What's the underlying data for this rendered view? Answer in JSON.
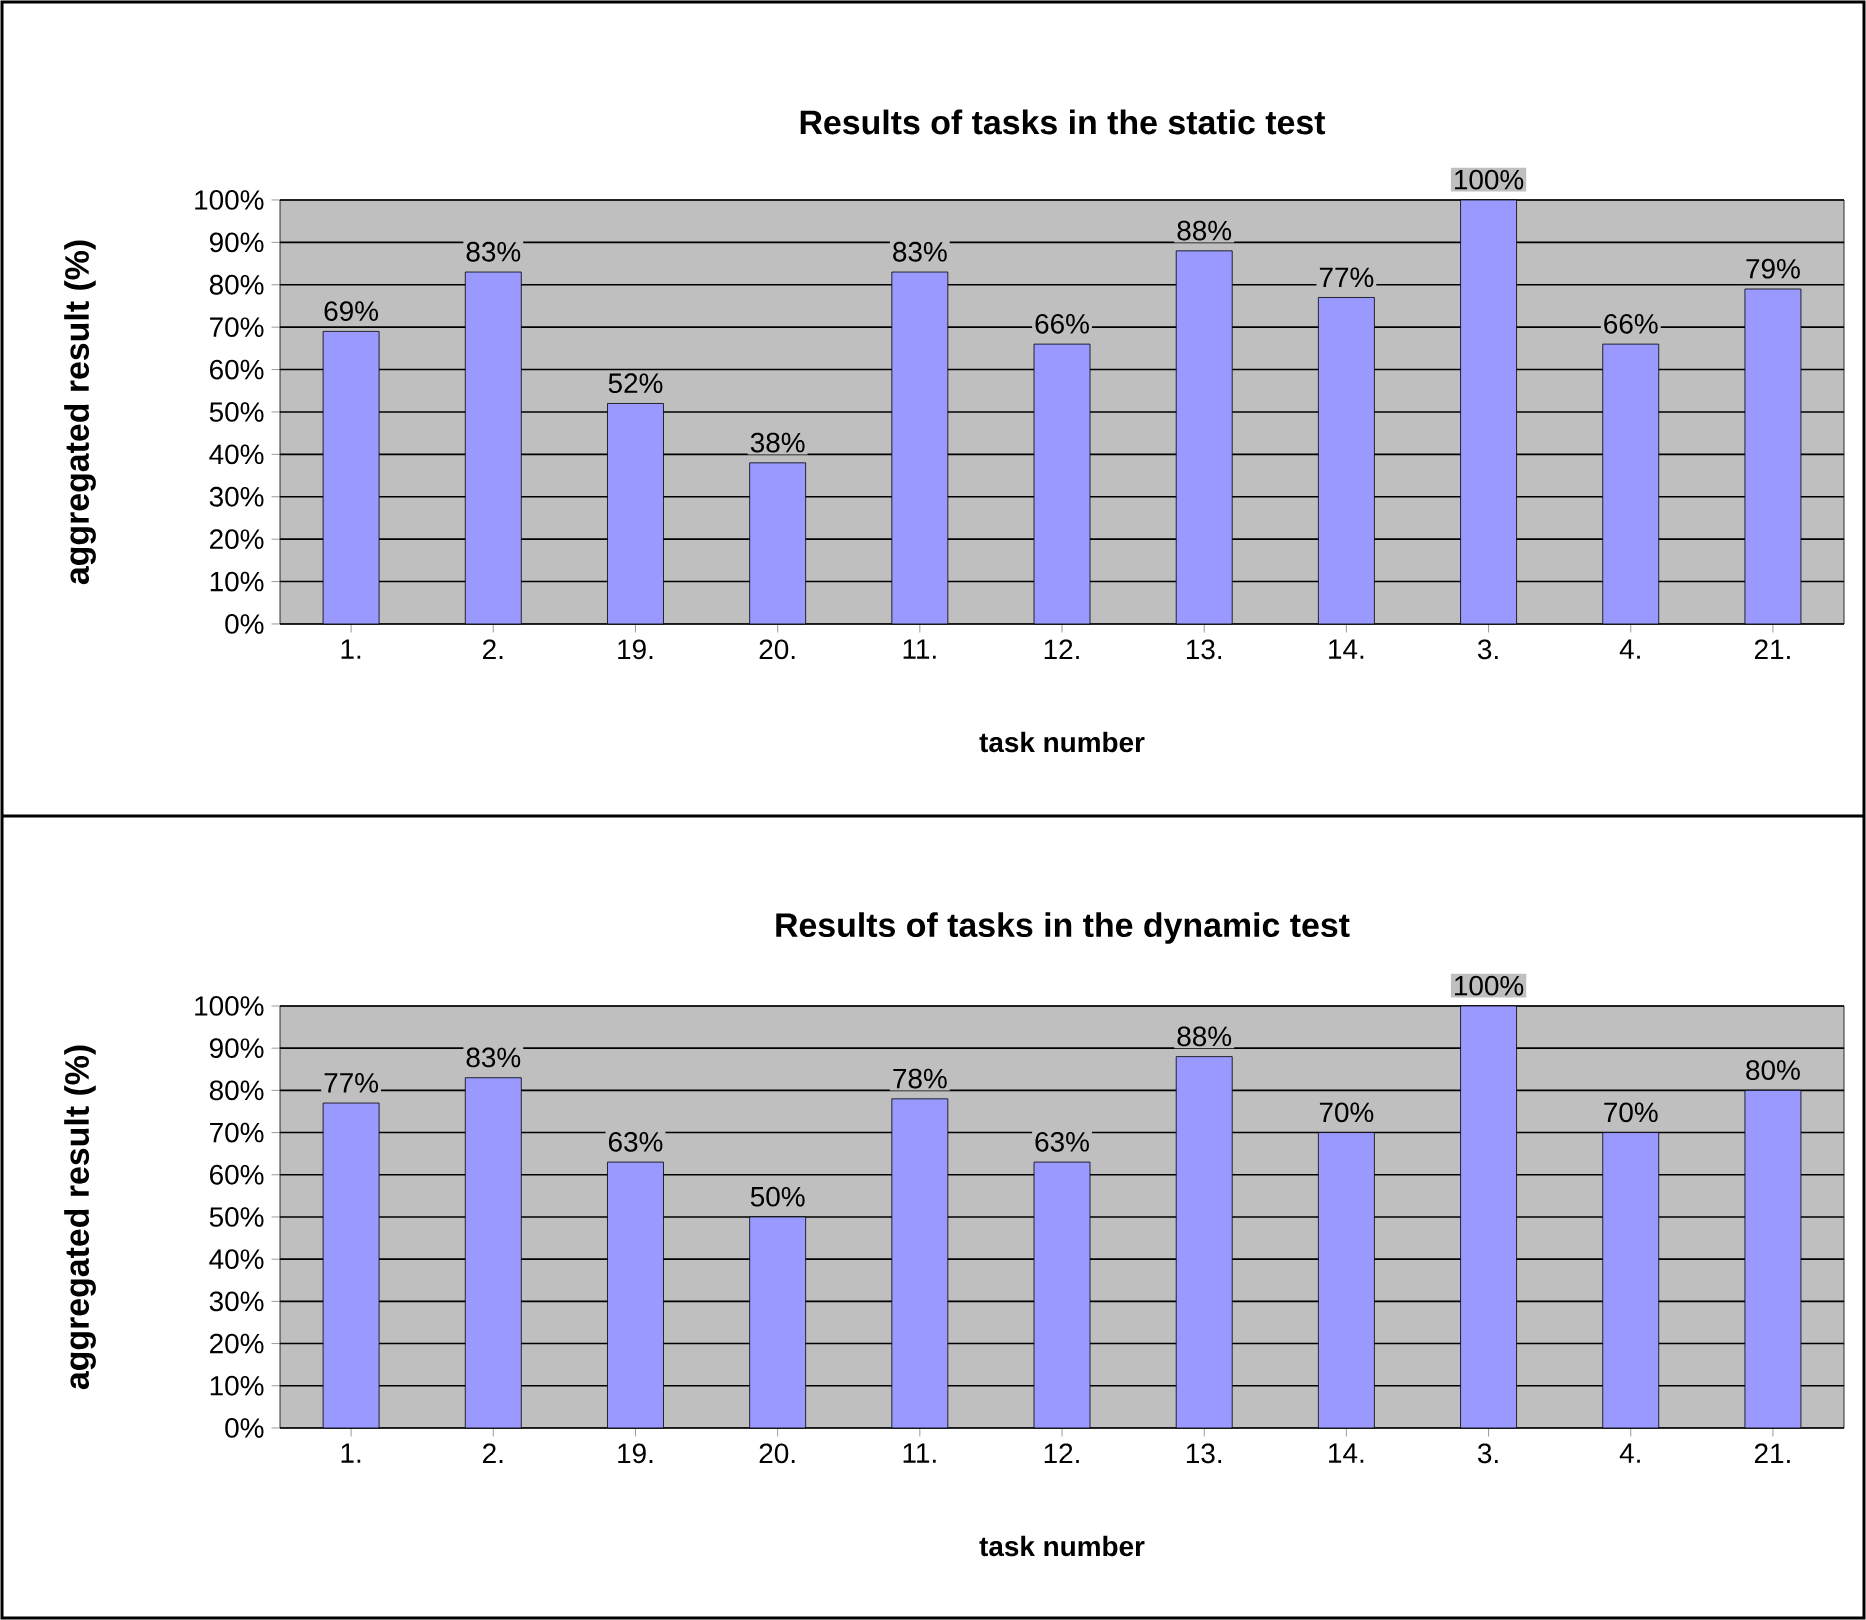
{
  "chart_data": [
    {
      "type": "bar",
      "title": "Results of tasks in the static test",
      "xlabel": "task number",
      "ylabel": "aggregated result (%)",
      "categories": [
        "1.",
        "2.",
        "19.",
        "20.",
        "11.",
        "12.",
        "13.",
        "14.",
        "3.",
        "4.",
        "21."
      ],
      "values": [
        69,
        83,
        52,
        38,
        83,
        66,
        88,
        77,
        100,
        66,
        79
      ],
      "value_labels": [
        "69%",
        "83%",
        "52%",
        "38%",
        "83%",
        "66%",
        "88%",
        "77%",
        "100%",
        "66%",
        "79%"
      ],
      "color": "#9999ff",
      "ylim": [
        0,
        100
      ],
      "yticks": [
        {
          "value": 0,
          "label": "0%"
        },
        {
          "value": 10,
          "label": "10%"
        },
        {
          "value": 20,
          "label": "20%"
        },
        {
          "value": 30,
          "label": "30%"
        },
        {
          "value": 40,
          "label": "40%"
        },
        {
          "value": 50,
          "label": "50%"
        },
        {
          "value": 60,
          "label": "60%"
        },
        {
          "value": 70,
          "label": "70%"
        },
        {
          "value": 80,
          "label": "80%"
        },
        {
          "value": 90,
          "label": "90%"
        },
        {
          "value": 100,
          "label": "100%"
        }
      ],
      "grid": "y"
    },
    {
      "type": "bar",
      "title": "Results of tasks in the dynamic test",
      "xlabel": "task number",
      "ylabel": "aggregated result (%)",
      "categories": [
        "1.",
        "2.",
        "19.",
        "20.",
        "11.",
        "12.",
        "13.",
        "14.",
        "3.",
        "4.",
        "21."
      ],
      "values": [
        77,
        83,
        63,
        50,
        78,
        63,
        88,
        70,
        100,
        70,
        80
      ],
      "value_labels": [
        "77%",
        "83%",
        "63%",
        "50%",
        "78%",
        "63%",
        "88%",
        "70%",
        "100%",
        "70%",
        "80%"
      ],
      "color": "#9999ff",
      "ylim": [
        0,
        100
      ],
      "yticks": [
        {
          "value": 0,
          "label": "0%"
        },
        {
          "value": 10,
          "label": "10%"
        },
        {
          "value": 20,
          "label": "20%"
        },
        {
          "value": 30,
          "label": "30%"
        },
        {
          "value": 40,
          "label": "40%"
        },
        {
          "value": 50,
          "label": "50%"
        },
        {
          "value": 60,
          "label": "60%"
        },
        {
          "value": 70,
          "label": "70%"
        },
        {
          "value": 80,
          "label": "80%"
        },
        {
          "value": 90,
          "label": "90%"
        },
        {
          "value": 100,
          "label": "100%"
        }
      ],
      "grid": "y"
    }
  ]
}
